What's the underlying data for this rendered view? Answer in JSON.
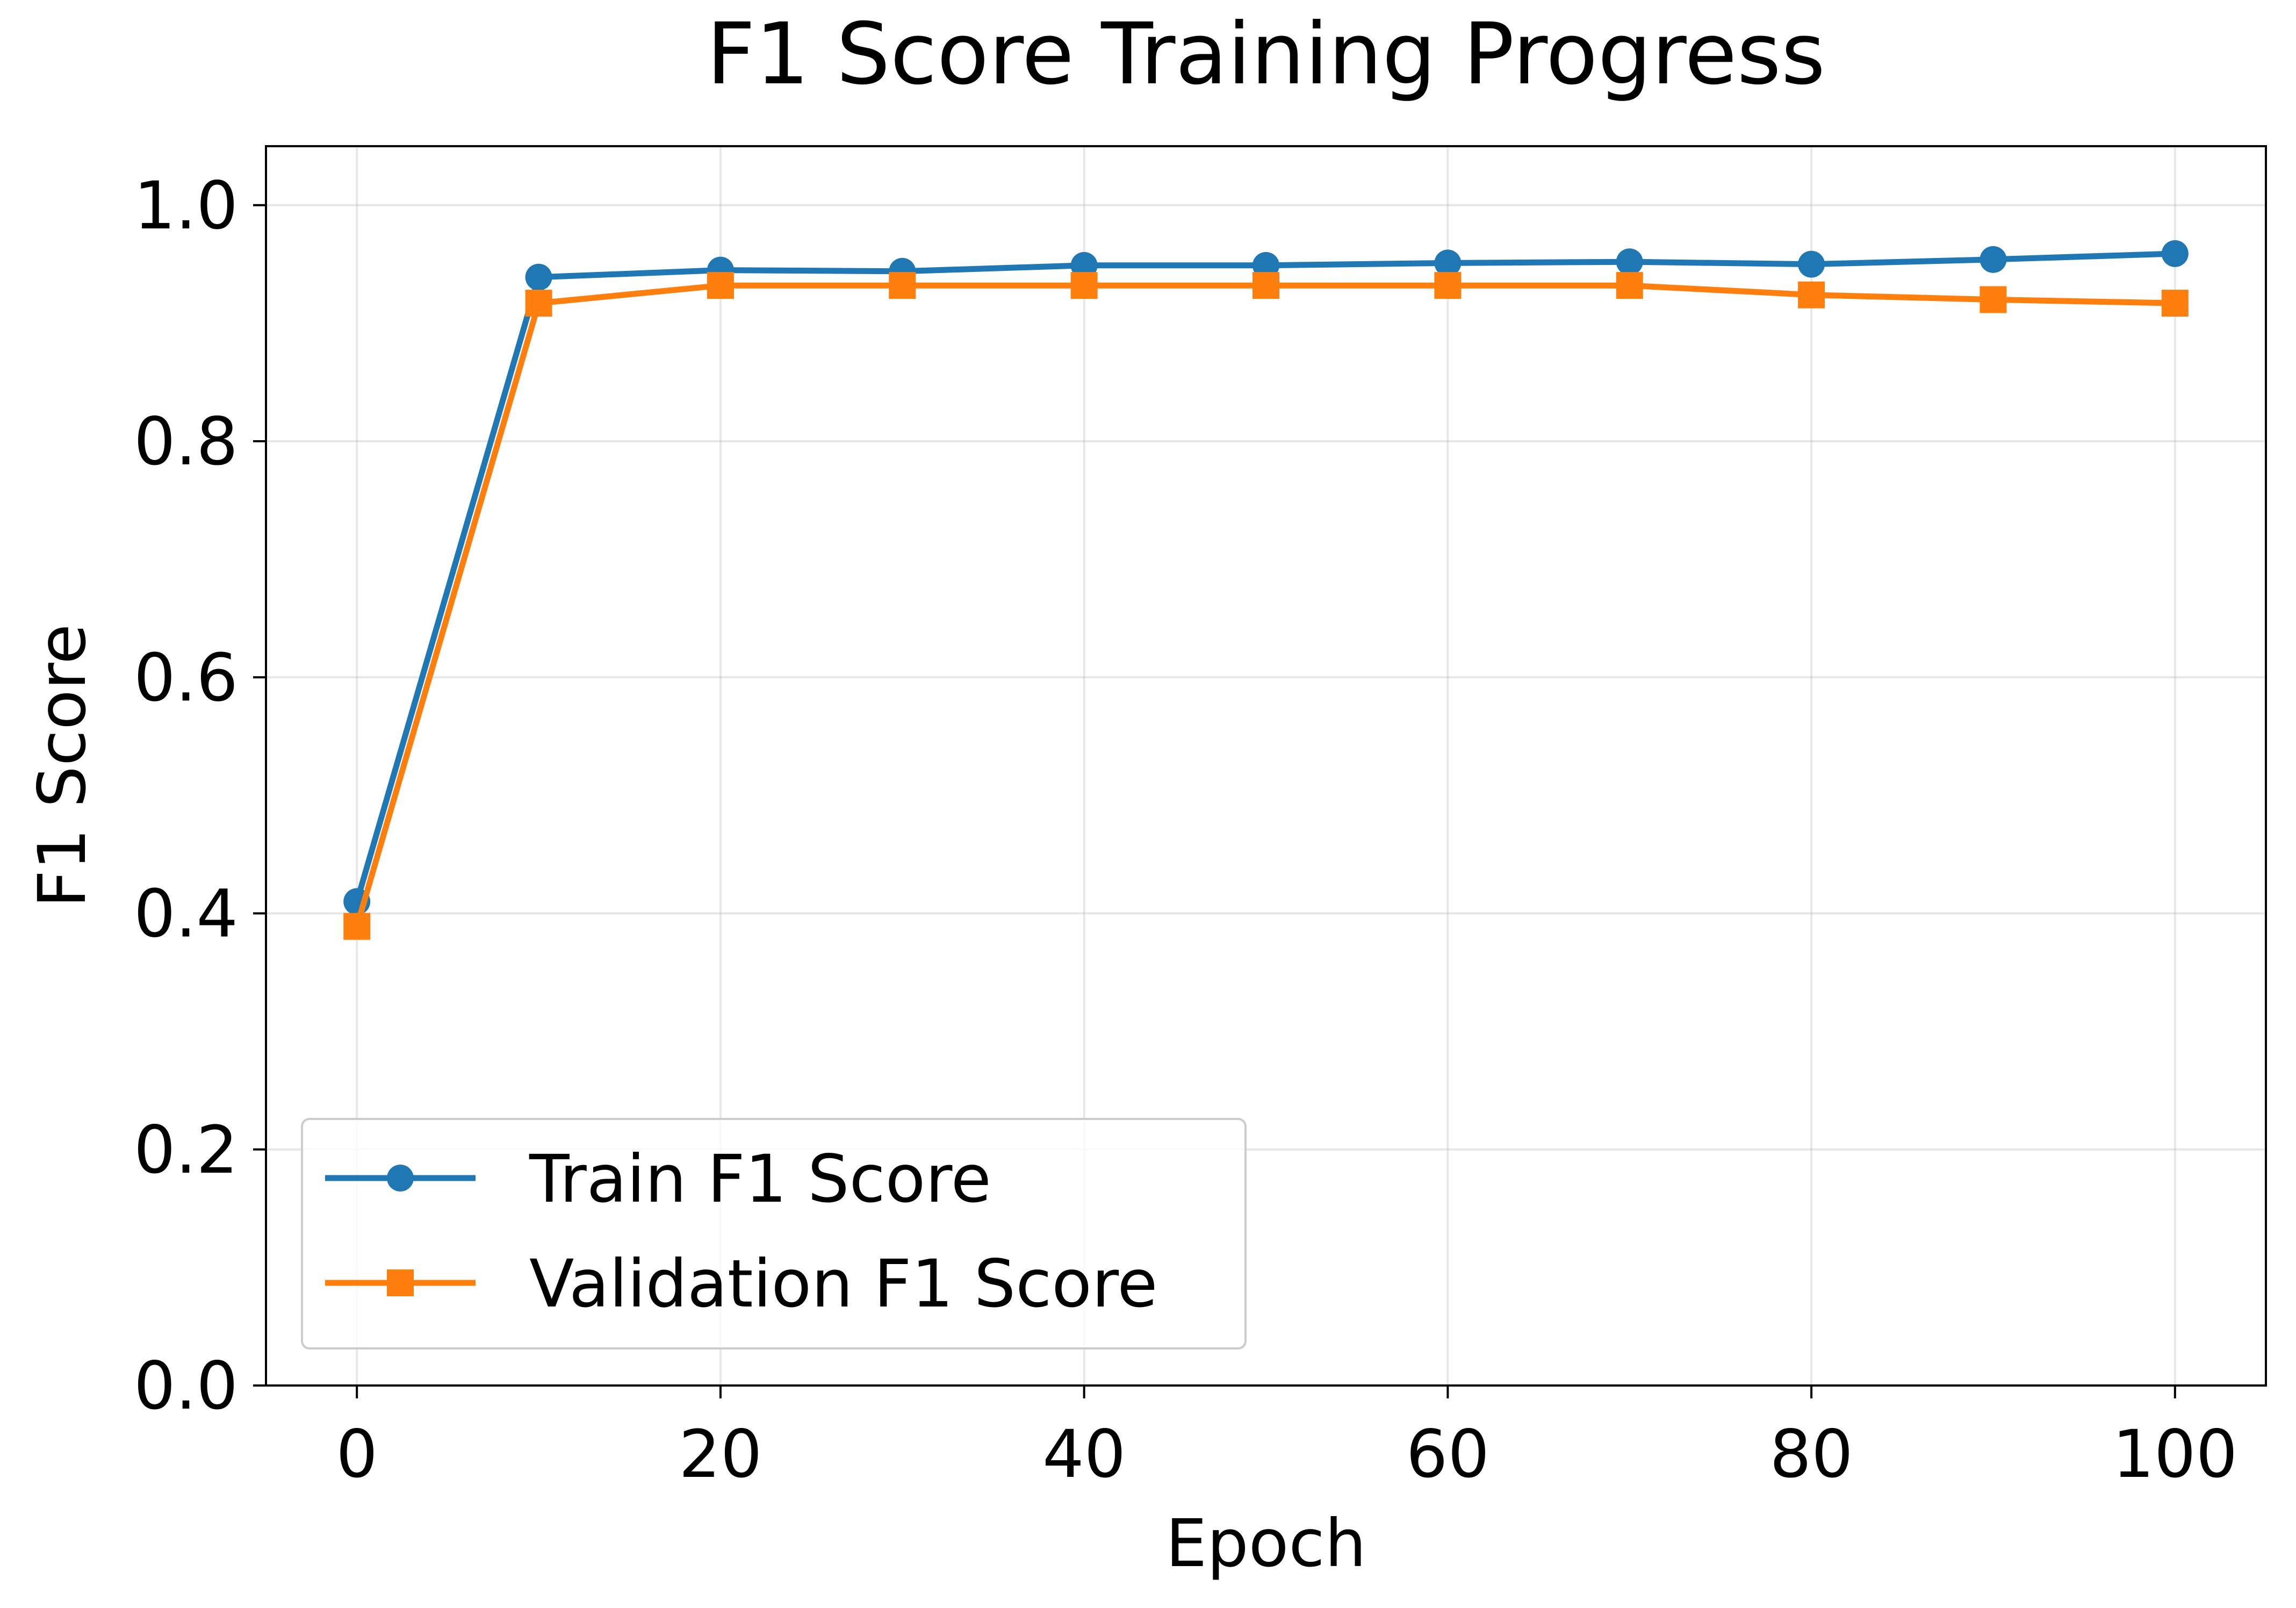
{
  "chart_data": {
    "type": "line",
    "title": "F1 Score Training Progress",
    "xlabel": "Epoch",
    "ylabel": "F1 Score",
    "xlim": [
      -5,
      105
    ],
    "ylim": [
      0,
      1.05
    ],
    "xticks": [
      0,
      20,
      40,
      60,
      80,
      100
    ],
    "xtick_labels": [
      "0",
      "20",
      "40",
      "60",
      "80",
      "100"
    ],
    "yticks": [
      0,
      0.2,
      0.4,
      0.6,
      0.8,
      1.0
    ],
    "ytick_labels": [
      "0.0",
      "0.2",
      "0.4",
      "0.6",
      "0.8",
      "1.0"
    ],
    "grid": true,
    "legend_position": "lower-left",
    "x": [
      0,
      10,
      20,
      30,
      40,
      50,
      60,
      70,
      80,
      90,
      100
    ],
    "series": [
      {
        "name": "Train F1 Score",
        "color": "#1f77b4",
        "marker": "circle",
        "values": [
          0.41,
          0.939,
          0.945,
          0.944,
          0.949,
          0.949,
          0.951,
          0.952,
          0.95,
          0.954,
          0.959
        ]
      },
      {
        "name": "Validation F1 Score",
        "color": "#ff7f0e",
        "marker": "square",
        "values": [
          0.389,
          0.917,
          0.932,
          0.932,
          0.932,
          0.932,
          0.932,
          0.932,
          0.924,
          0.92,
          0.917
        ]
      }
    ]
  }
}
